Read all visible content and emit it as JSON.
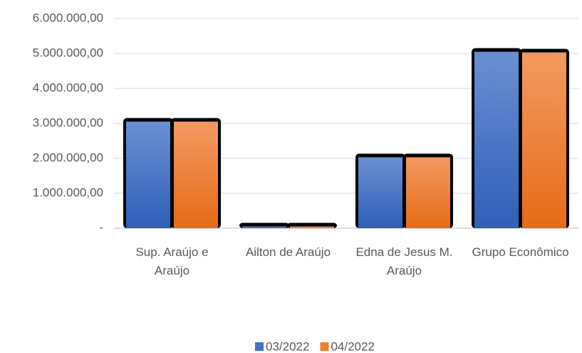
{
  "chart_data": {
    "type": "bar",
    "categories": [
      "Sup. Araújo e Araújo",
      "Ailton de Araújo",
      "Edna de Jesus M. Araújo",
      "Grupo Econômico"
    ],
    "series": [
      {
        "name": "03/2022",
        "color": "#4472c4",
        "values": [
          3050000,
          50000,
          2030000,
          5050000
        ]
      },
      {
        "name": "04/2022",
        "color": "#ed7d31",
        "values": [
          3050000,
          50000,
          2030000,
          5030000
        ]
      }
    ],
    "ylim": [
      0,
      6000000
    ],
    "yticks": [
      {
        "value": 0,
        "label": "-"
      },
      {
        "value": 1000000,
        "label": "1.000.000,00"
      },
      {
        "value": 2000000,
        "label": "2.000.000,00"
      },
      {
        "value": 3000000,
        "label": "3.000.000,00"
      },
      {
        "value": 4000000,
        "label": "4.000.000,00"
      },
      {
        "value": 5000000,
        "label": "5.000.000,00"
      },
      {
        "value": 6000000,
        "label": "6.000.000,00"
      }
    ],
    "grid": true,
    "legend": "bottom"
  }
}
